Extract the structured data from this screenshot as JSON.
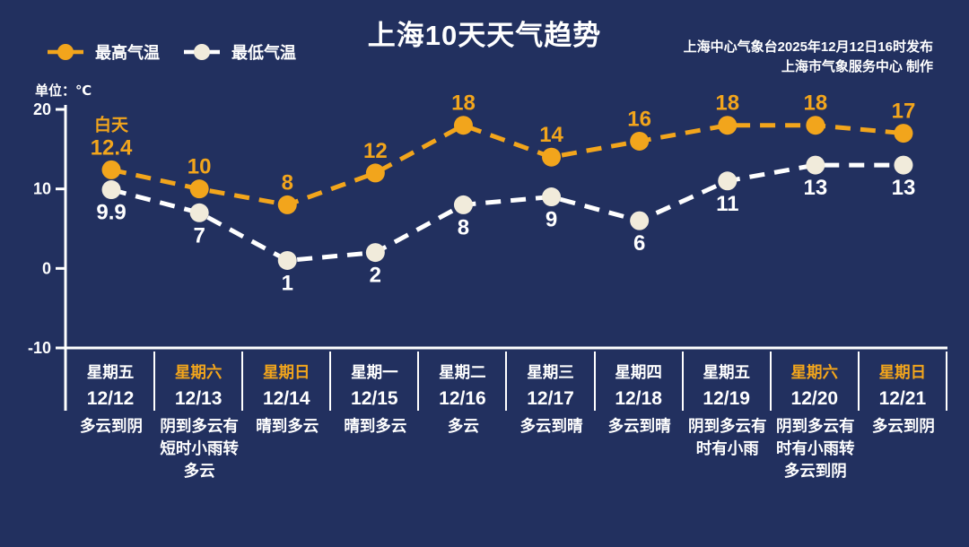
{
  "header": {
    "publisher_line1": "上海中心气象台2025年12月12日16时发布",
    "publisher_line2": "上海市气象服务中心  制作"
  },
  "colors": {
    "background": "#22305f",
    "accent_orange": "#F2A51C",
    "marker_cream": "#F1EBDB",
    "line_white": "#FFFFFF",
    "text_white": "#FFFFFF"
  },
  "chart_data": {
    "type": "line",
    "title": "上海10天天气趋势",
    "unit": "单位：℃",
    "legend_position": "top-left",
    "grid": false,
    "y_axis": {
      "min": -10,
      "max": 20,
      "ticks": [
        20,
        10,
        0,
        -10
      ]
    },
    "categories": [
      {
        "week": "星期五",
        "date": "12/12",
        "weather": "多云到阴",
        "highlight": false
      },
      {
        "week": "星期六",
        "date": "12/13",
        "weather": "阴到多云有短时小雨转多云",
        "highlight": true
      },
      {
        "week": "星期日",
        "date": "12/14",
        "weather": "晴到多云",
        "highlight": true
      },
      {
        "week": "星期一",
        "date": "12/15",
        "weather": "晴到多云",
        "highlight": false
      },
      {
        "week": "星期二",
        "date": "12/16",
        "weather": "多云",
        "highlight": false
      },
      {
        "week": "星期三",
        "date": "12/17",
        "weather": "多云到晴",
        "highlight": false
      },
      {
        "week": "星期四",
        "date": "12/18",
        "weather": "多云到晴",
        "highlight": false
      },
      {
        "week": "星期五",
        "date": "12/19",
        "weather": "阴到多云有时有小雨",
        "highlight": false
      },
      {
        "week": "星期六",
        "date": "12/20",
        "weather": "阴到多云有时有小雨转多云到阴",
        "highlight": true
      },
      {
        "week": "星期日",
        "date": "12/21",
        "weather": "多云到阴",
        "highlight": true
      }
    ],
    "series": [
      {
        "name": "最高气温",
        "annotation": "白天",
        "line_color": "#F2A51C",
        "marker_color": "#F2A51C",
        "label_color": "#F2A51C",
        "values": [
          12.4,
          10,
          8,
          12,
          18,
          14,
          16,
          18,
          18,
          17
        ]
      },
      {
        "name": "最低气温",
        "line_color": "#FFFFFF",
        "marker_color": "#F1EBDB",
        "label_color": "#FFFFFF",
        "values": [
          9.9,
          7,
          1,
          2,
          8,
          9,
          6,
          11,
          13,
          13
        ]
      }
    ]
  }
}
